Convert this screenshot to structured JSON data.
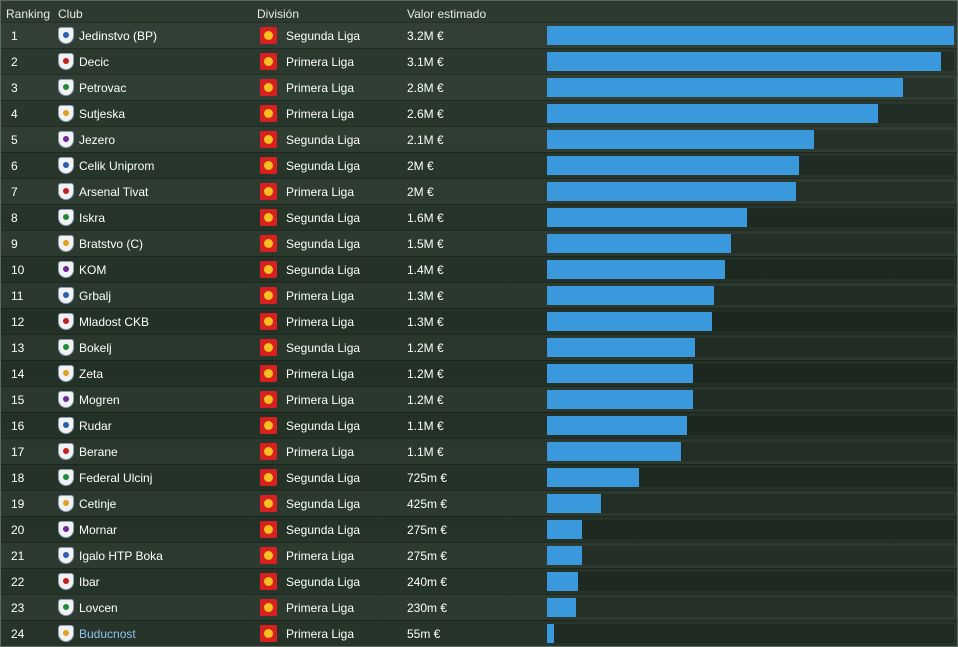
{
  "columns": {
    "ranking": "Ranking",
    "club": "Club",
    "division": "División",
    "value": "Valor estimado"
  },
  "max_value_eur": 3200000,
  "rows": [
    {
      "rank": "1",
      "club": "Jedinstvo (BP)",
      "division": "Segunda Liga",
      "value": "3.2M €",
      "value_eur": 3200000
    },
    {
      "rank": "2",
      "club": "Decic",
      "division": "Primera Liga",
      "value": "3.1M €",
      "value_eur": 3100000
    },
    {
      "rank": "3",
      "club": "Petrovac",
      "division": "Primera Liga",
      "value": "2.8M €",
      "value_eur": 2800000
    },
    {
      "rank": "4",
      "club": "Sutjeska",
      "division": "Primera Liga",
      "value": "2.6M €",
      "value_eur": 2600000
    },
    {
      "rank": "5",
      "club": "Jezero",
      "division": "Segunda Liga",
      "value": "2.1M €",
      "value_eur": 2100000
    },
    {
      "rank": "6",
      "club": "Celik Uniprom",
      "division": "Segunda Liga",
      "value": "2M €",
      "value_eur": 1980000
    },
    {
      "rank": "7",
      "club": "Arsenal Tivat",
      "division": "Primera Liga",
      "value": "2M €",
      "value_eur": 1960000
    },
    {
      "rank": "8",
      "club": "Iskra",
      "division": "Segunda Liga",
      "value": "1.6M €",
      "value_eur": 1570000
    },
    {
      "rank": "9",
      "club": "Bratstvo (C)",
      "division": "Segunda Liga",
      "value": "1.5M €",
      "value_eur": 1450000
    },
    {
      "rank": "10",
      "club": "KOM",
      "division": "Segunda Liga",
      "value": "1.4M €",
      "value_eur": 1400000
    },
    {
      "rank": "11",
      "club": "Grbalj",
      "division": "Primera Liga",
      "value": "1.3M €",
      "value_eur": 1310000
    },
    {
      "rank": "12",
      "club": "Mladost CKB",
      "division": "Primera Liga",
      "value": "1.3M €",
      "value_eur": 1300000
    },
    {
      "rank": "13",
      "club": "Bokelj",
      "division": "Segunda Liga",
      "value": "1.2M €",
      "value_eur": 1160000
    },
    {
      "rank": "14",
      "club": "Zeta",
      "division": "Primera Liga",
      "value": "1.2M €",
      "value_eur": 1150000
    },
    {
      "rank": "15",
      "club": "Mogren",
      "division": "Primera Liga",
      "value": "1.2M €",
      "value_eur": 1150000
    },
    {
      "rank": "16",
      "club": "Rudar",
      "division": "Segunda Liga",
      "value": "1.1M €",
      "value_eur": 1100000
    },
    {
      "rank": "17",
      "club": "Berane",
      "division": "Primera Liga",
      "value": "1.1M €",
      "value_eur": 1050000
    },
    {
      "rank": "18",
      "club": "Federal Ulcinj",
      "division": "Segunda Liga",
      "value": "725m €",
      "value_eur": 725000
    },
    {
      "rank": "19",
      "club": "Cetinje",
      "division": "Segunda Liga",
      "value": "425m €",
      "value_eur": 425000
    },
    {
      "rank": "20",
      "club": "Mornar",
      "division": "Segunda Liga",
      "value": "275m €",
      "value_eur": 275000
    },
    {
      "rank": "21",
      "club": "Igalo HTP Boka",
      "division": "Primera Liga",
      "value": "275m €",
      "value_eur": 275000
    },
    {
      "rank": "22",
      "club": "Ibar",
      "division": "Segunda Liga",
      "value": "240m €",
      "value_eur": 240000
    },
    {
      "rank": "23",
      "club": "Lovcen",
      "division": "Primera Liga",
      "value": "230m €",
      "value_eur": 230000
    },
    {
      "rank": "24",
      "club": "Buducnost",
      "division": "Primera Liga",
      "value": "55m €",
      "value_eur": 55000,
      "highlight": true
    }
  ],
  "colors": {
    "bar": "#3a98dc",
    "highlight_text": "#8fc2f0",
    "division_badge": "#d92020"
  }
}
